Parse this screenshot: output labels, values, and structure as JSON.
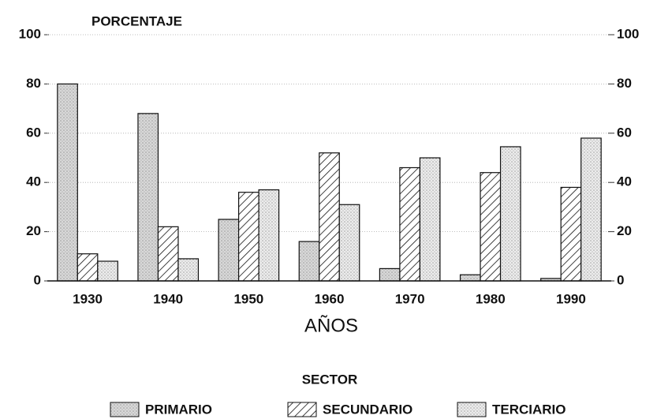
{
  "chart_data": {
    "type": "bar",
    "y_axis_label": "PORCENTAJE",
    "x_axis_label": "AÑOS",
    "legend_title": "SECTOR",
    "categories": [
      "1930",
      "1940",
      "1950",
      "1960",
      "1970",
      "1980",
      "1990"
    ],
    "series": [
      {
        "name": "PRIMARIO",
        "color": "#d8d8d8",
        "pattern": "dots",
        "values": [
          80,
          68,
          25,
          16,
          5,
          2.5,
          1
        ]
      },
      {
        "name": "SECUNDARIO",
        "color": "#ffffff",
        "pattern": "hatch",
        "values": [
          11,
          22,
          36,
          52,
          46,
          44,
          38
        ]
      },
      {
        "name": "TERCIARIO",
        "color": "#ececec",
        "pattern": "dots",
        "values": [
          8,
          9,
          37,
          31,
          50,
          54.5,
          58
        ]
      }
    ],
    "ylim": [
      0,
      100
    ],
    "yticks": [
      0,
      20,
      40,
      60,
      80,
      100
    ],
    "y2lim": [
      0,
      100
    ],
    "y2ticks": [
      0,
      20,
      40,
      60,
      80,
      100
    ],
    "grid": true,
    "legend": "bottom"
  }
}
